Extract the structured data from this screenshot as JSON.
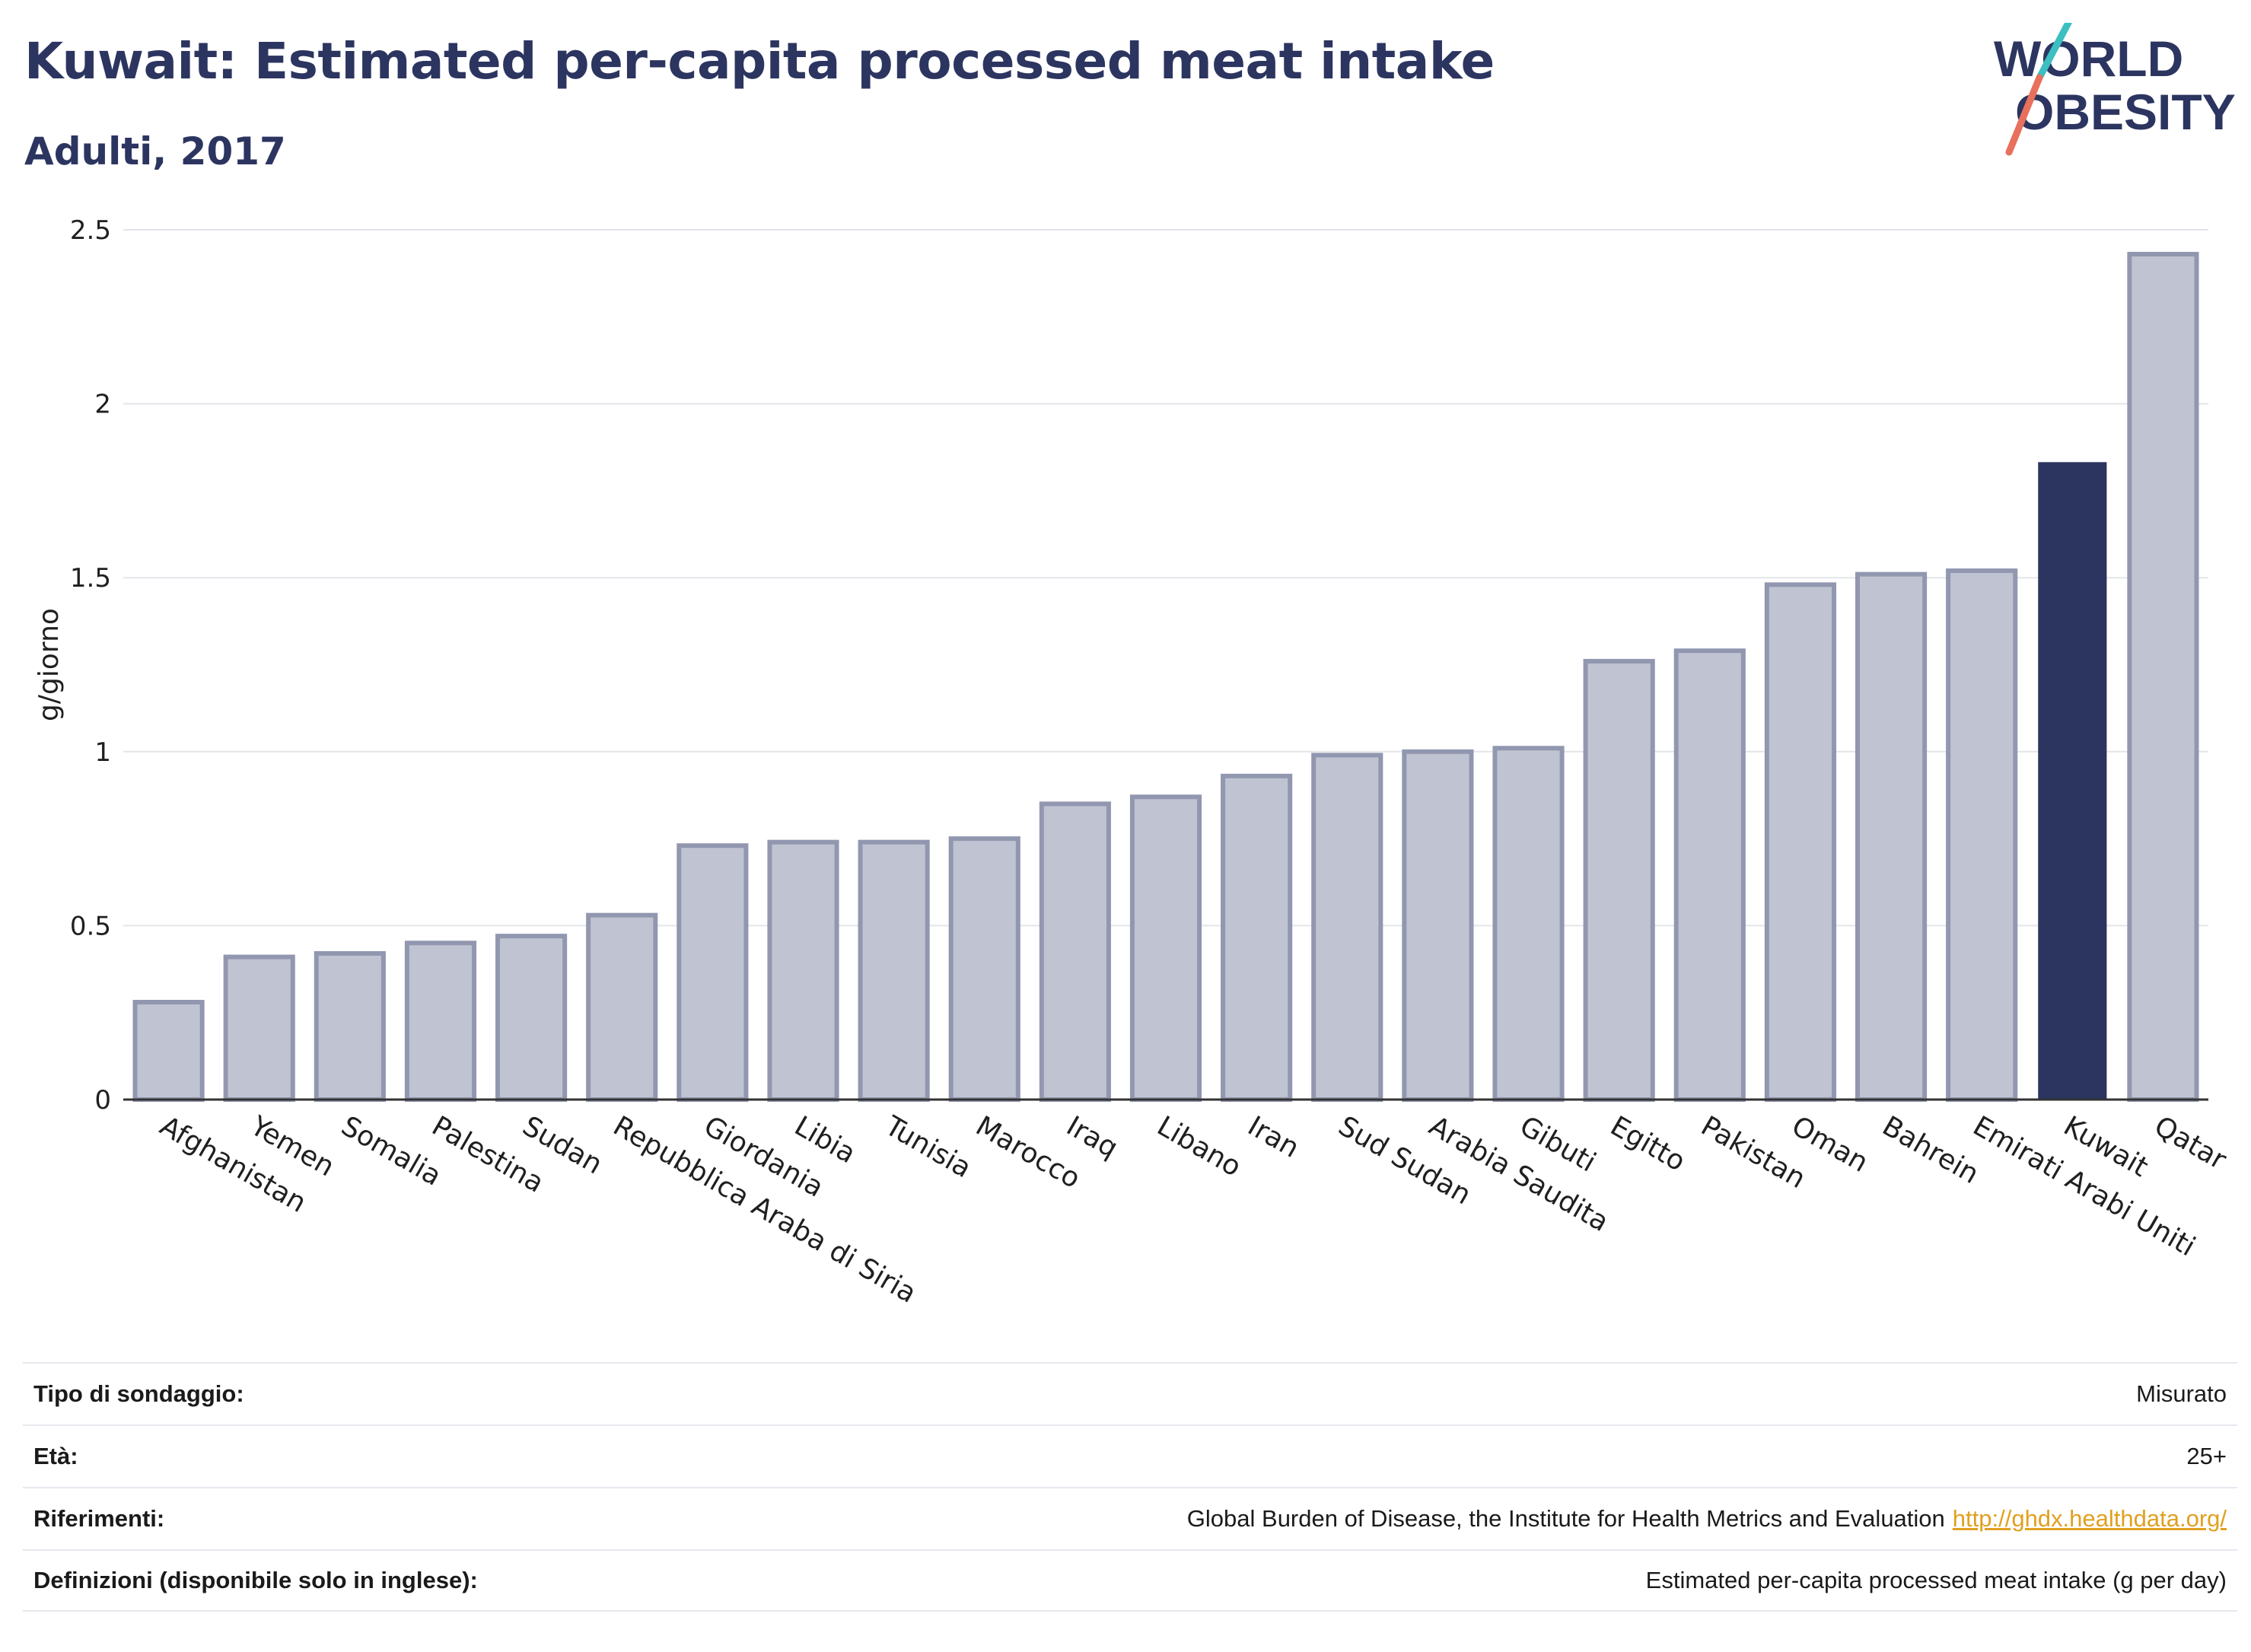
{
  "header": {
    "title": "Kuwait: Estimated per-capita processed meat intake",
    "subtitle": "Adulti, 2017"
  },
  "logo": {
    "line1": "WORLD",
    "line2": "OBESITY",
    "accent_teal": "#3bbfc0",
    "accent_coral": "#e8705c",
    "text_color": "#2c3560"
  },
  "chart_data": {
    "type": "bar",
    "ylabel": "g/giorno",
    "ylim": [
      0,
      2.5
    ],
    "yticks": [
      0,
      0.5,
      1,
      1.5,
      2,
      2.5
    ],
    "ytick_labels": [
      "0",
      "0.5",
      "1",
      "1.5",
      "2",
      "2.5"
    ],
    "grid": true,
    "highlight": "Kuwait",
    "colors": {
      "bar": "#c0c3d1",
      "bar_edge": "#9297b0",
      "highlight": "#2c3560"
    },
    "categories": [
      "Afghanistan",
      "Yemen",
      "Somalia",
      "Palestina",
      "Sudan",
      "Repubblica Araba di Siria",
      "Giordania",
      "Libia",
      "Tunisia",
      "Marocco",
      "Iraq",
      "Libano",
      "Iran",
      "Sud Sudan",
      "Arabia Saudita",
      "Gibuti",
      "Egitto",
      "Pakistan",
      "Oman",
      "Bahrein",
      "Emirati Arabi Uniti",
      "Kuwait",
      "Qatar"
    ],
    "values": [
      0.28,
      0.41,
      0.42,
      0.45,
      0.47,
      0.53,
      0.73,
      0.74,
      0.74,
      0.75,
      0.85,
      0.87,
      0.93,
      0.99,
      1.0,
      1.01,
      1.26,
      1.29,
      1.48,
      1.51,
      1.52,
      1.83,
      2.43
    ]
  },
  "info": {
    "rows": [
      {
        "label": "Tipo di sondaggio:",
        "value": "Misurato"
      },
      {
        "label": "Età:",
        "value": "25+"
      },
      {
        "label": "Riferimenti:",
        "value": "Global Burden of Disease, the Institute for Health Metrics and Evaluation",
        "link": "http://ghdx.healthdata.org/"
      },
      {
        "label": "Definizioni (disponibile solo in inglese):",
        "value": "Estimated per-capita processed meat intake (g per day)"
      }
    ]
  }
}
